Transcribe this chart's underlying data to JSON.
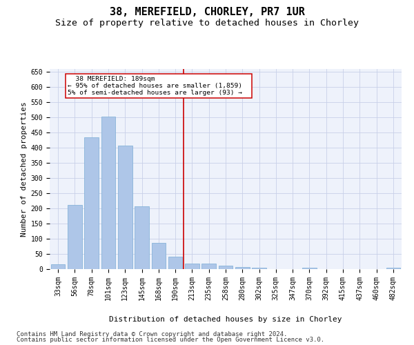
{
  "title": "38, MEREFIELD, CHORLEY, PR7 1UR",
  "subtitle": "Size of property relative to detached houses in Chorley",
  "xlabel": "Distribution of detached houses by size in Chorley",
  "ylabel": "Number of detached properties",
  "footer_line1": "Contains HM Land Registry data © Crown copyright and database right 2024.",
  "footer_line2": "Contains public sector information licensed under the Open Government Licence v3.0.",
  "categories": [
    "33sqm",
    "56sqm",
    "78sqm",
    "101sqm",
    "123sqm",
    "145sqm",
    "168sqm",
    "190sqm",
    "213sqm",
    "235sqm",
    "258sqm",
    "280sqm",
    "302sqm",
    "325sqm",
    "347sqm",
    "370sqm",
    "392sqm",
    "415sqm",
    "437sqm",
    "460sqm",
    "482sqm"
  ],
  "values": [
    15,
    212,
    435,
    502,
    407,
    207,
    87,
    40,
    18,
    18,
    12,
    6,
    5,
    0,
    0,
    5,
    0,
    0,
    0,
    0,
    5
  ],
  "bar_color": "#aec6e8",
  "bar_edge_color": "#7aadd5",
  "vline_color": "#cc0000",
  "annotation_line1": "38 MEREFIELD: 189sqm",
  "annotation_line2": "← 95% of detached houses are smaller (1,859)",
  "annotation_line3": "5% of semi-detached houses are larger (93) →",
  "annotation_box_edge": "#cc0000",
  "ylim": [
    0,
    660
  ],
  "yticks": [
    0,
    50,
    100,
    150,
    200,
    250,
    300,
    350,
    400,
    450,
    500,
    550,
    600,
    650
  ],
  "bg_color": "#eef2fb",
  "grid_color": "#c8d0e8",
  "title_fontsize": 11,
  "subtitle_fontsize": 9.5,
  "axis_label_fontsize": 8,
  "tick_fontsize": 7,
  "footer_fontsize": 6.5
}
